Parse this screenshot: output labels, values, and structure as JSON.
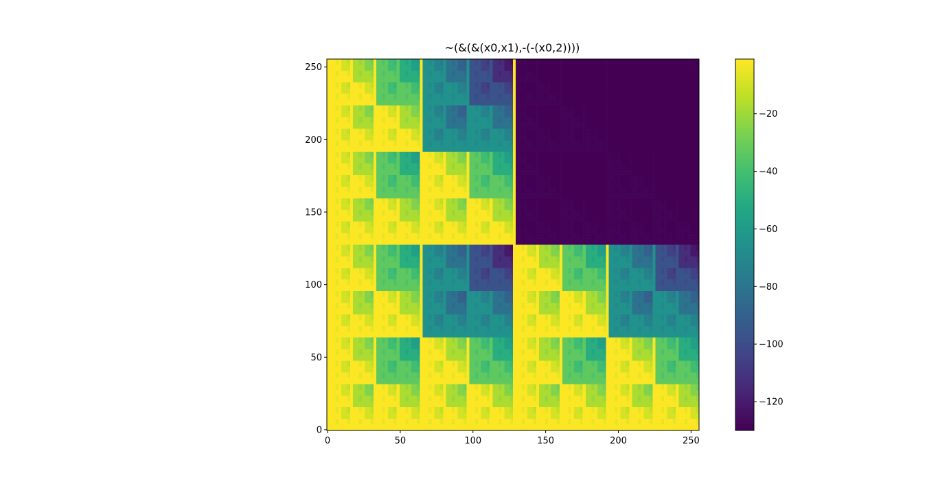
{
  "chart_data": {
    "type": "heatmap",
    "title": "~(&(&(x0,x1),-(-(x0,2))))",
    "xlabel": "",
    "ylabel": "",
    "xlim": [
      0,
      256
    ],
    "ylim": [
      0,
      256
    ],
    "origin": "lower",
    "grid": false,
    "x_ticks": [
      {
        "value": 0,
        "label": "0"
      },
      {
        "value": 50,
        "label": "50"
      },
      {
        "value": 100,
        "label": "100"
      },
      {
        "value": 150,
        "label": "150"
      },
      {
        "value": 200,
        "label": "200"
      },
      {
        "value": 250,
        "label": "250"
      }
    ],
    "y_ticks": [
      {
        "value": 0,
        "label": "0"
      },
      {
        "value": 50,
        "label": "50"
      },
      {
        "value": 100,
        "label": "100"
      },
      {
        "value": 150,
        "label": "150"
      },
      {
        "value": 200,
        "label": "200"
      },
      {
        "value": 250,
        "label": "250"
      }
    ],
    "formula": "z = ~((x0 & x1) & (x0 - 2)), x0 = column, x1 = row",
    "colormap": "viridis",
    "colorbar": {
      "vmin": -130,
      "vmax": -1,
      "ticks": [
        {
          "value": -20,
          "label": "−20"
        },
        {
          "value": -40,
          "label": "−40"
        },
        {
          "value": -60,
          "label": "−60"
        },
        {
          "value": -80,
          "label": "−80"
        },
        {
          "value": -100,
          "label": "−100"
        },
        {
          "value": -120,
          "label": "−120"
        }
      ]
    }
  }
}
